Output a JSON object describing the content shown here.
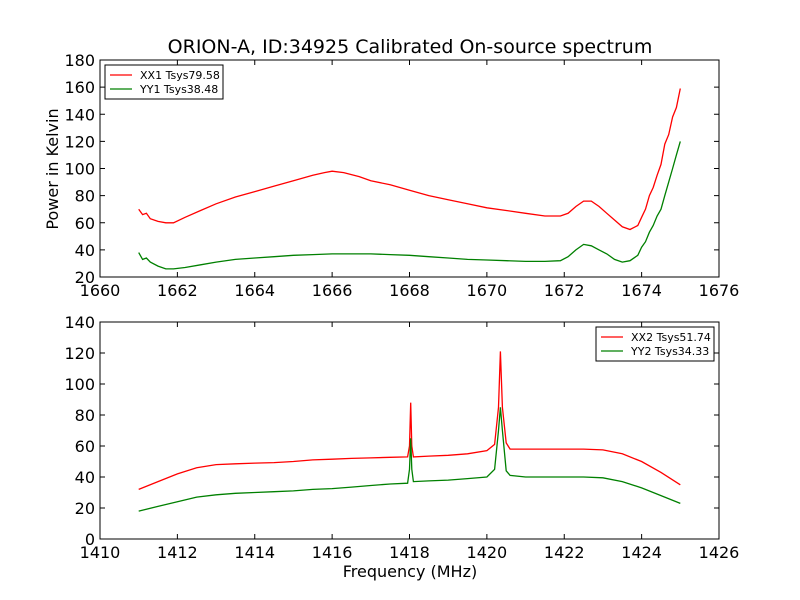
{
  "figure": {
    "title": "ORION-A, ID:34925 Calibrated On-source spectrum",
    "ylabel": "Power in Kelvin",
    "xlabel": "Frequency (MHz)"
  },
  "chart_data": [
    {
      "type": "line",
      "title": "ORION-A, ID:34925 Calibrated On-source spectrum",
      "xlabel": "",
      "ylabel": "Power in Kelvin",
      "xlim": [
        1660,
        1676
      ],
      "ylim": [
        20,
        180
      ],
      "xticks": [
        1660,
        1662,
        1664,
        1666,
        1668,
        1670,
        1672,
        1674,
        1676
      ],
      "yticks": [
        20,
        40,
        60,
        80,
        100,
        120,
        140,
        160,
        180
      ],
      "grid": false,
      "legend": "top-left",
      "series": [
        {
          "name": "XX1 Tsys79.58",
          "color": "#ff0000",
          "points": [
            [
              1661.0,
              70
            ],
            [
              1661.1,
              66
            ],
            [
              1661.2,
              67
            ],
            [
              1661.3,
              63
            ],
            [
              1661.5,
              61
            ],
            [
              1661.7,
              60
            ],
            [
              1661.9,
              60
            ],
            [
              1662.2,
              64
            ],
            [
              1662.6,
              69
            ],
            [
              1663.0,
              74
            ],
            [
              1663.5,
              79
            ],
            [
              1664.0,
              83
            ],
            [
              1664.5,
              87
            ],
            [
              1665.0,
              91
            ],
            [
              1665.5,
              95
            ],
            [
              1665.8,
              97
            ],
            [
              1666.0,
              98
            ],
            [
              1666.3,
              97
            ],
            [
              1666.7,
              94
            ],
            [
              1667.0,
              91
            ],
            [
              1667.5,
              88
            ],
            [
              1668.0,
              84
            ],
            [
              1668.5,
              80
            ],
            [
              1669.0,
              77
            ],
            [
              1669.5,
              74
            ],
            [
              1670.0,
              71
            ],
            [
              1670.5,
              69
            ],
            [
              1671.0,
              67
            ],
            [
              1671.5,
              65
            ],
            [
              1671.9,
              65
            ],
            [
              1672.1,
              67
            ],
            [
              1672.3,
              72
            ],
            [
              1672.5,
              76
            ],
            [
              1672.7,
              76
            ],
            [
              1672.9,
              72
            ],
            [
              1673.1,
              67
            ],
            [
              1673.3,
              62
            ],
            [
              1673.5,
              57
            ],
            [
              1673.7,
              55
            ],
            [
              1673.9,
              58
            ],
            [
              1674.0,
              64
            ],
            [
              1674.1,
              70
            ],
            [
              1674.2,
              80
            ],
            [
              1674.3,
              86
            ],
            [
              1674.4,
              95
            ],
            [
              1674.5,
              103
            ],
            [
              1674.6,
              118
            ],
            [
              1674.7,
              125
            ],
            [
              1674.8,
              138
            ],
            [
              1674.9,
              145
            ],
            [
              1675.0,
              159
            ]
          ]
        },
        {
          "name": "YY1 Tsys38.48",
          "color": "#008000",
          "points": [
            [
              1661.0,
              38
            ],
            [
              1661.1,
              33
            ],
            [
              1661.2,
              34
            ],
            [
              1661.3,
              31
            ],
            [
              1661.5,
              28
            ],
            [
              1661.7,
              26
            ],
            [
              1661.9,
              26
            ],
            [
              1662.2,
              27
            ],
            [
              1662.6,
              29
            ],
            [
              1663.0,
              31
            ],
            [
              1663.5,
              33
            ],
            [
              1664.0,
              34
            ],
            [
              1664.5,
              35
            ],
            [
              1665.0,
              36
            ],
            [
              1665.5,
              36.5
            ],
            [
              1666.0,
              37
            ],
            [
              1666.5,
              37
            ],
            [
              1667.0,
              37
            ],
            [
              1667.5,
              36.5
            ],
            [
              1668.0,
              36
            ],
            [
              1668.5,
              35
            ],
            [
              1669.0,
              34
            ],
            [
              1669.5,
              33
            ],
            [
              1670.0,
              32.5
            ],
            [
              1670.5,
              32
            ],
            [
              1671.0,
              31.5
            ],
            [
              1671.5,
              31.5
            ],
            [
              1671.9,
              32
            ],
            [
              1672.1,
              35
            ],
            [
              1672.3,
              40
            ],
            [
              1672.5,
              44
            ],
            [
              1672.7,
              43
            ],
            [
              1672.9,
              40
            ],
            [
              1673.1,
              37
            ],
            [
              1673.3,
              33
            ],
            [
              1673.5,
              31
            ],
            [
              1673.7,
              32
            ],
            [
              1673.9,
              36
            ],
            [
              1674.0,
              42
            ],
            [
              1674.1,
              46
            ],
            [
              1674.2,
              53
            ],
            [
              1674.3,
              58
            ],
            [
              1674.4,
              65
            ],
            [
              1674.5,
              70
            ],
            [
              1674.6,
              80
            ],
            [
              1674.7,
              90
            ],
            [
              1674.8,
              100
            ],
            [
              1674.9,
              110
            ],
            [
              1675.0,
              120
            ]
          ]
        }
      ]
    },
    {
      "type": "line",
      "title": "",
      "xlabel": "Frequency (MHz)",
      "ylabel": "",
      "xlim": [
        1410,
        1426
      ],
      "ylim": [
        0,
        140
      ],
      "xticks": [
        1410,
        1412,
        1414,
        1416,
        1418,
        1420,
        1422,
        1424,
        1426
      ],
      "yticks": [
        0,
        20,
        40,
        60,
        80,
        100,
        120,
        140
      ],
      "grid": false,
      "legend": "top-right",
      "series": [
        {
          "name": "XX2 Tsys51.74",
          "color": "#ff0000",
          "points": [
            [
              1411.0,
              32
            ],
            [
              1411.5,
              37
            ],
            [
              1412.0,
              42
            ],
            [
              1412.5,
              46
            ],
            [
              1413.0,
              48
            ],
            [
              1413.5,
              48.5
            ],
            [
              1414.0,
              49
            ],
            [
              1414.5,
              49.3
            ],
            [
              1415.0,
              50
            ],
            [
              1415.5,
              51
            ],
            [
              1416.0,
              51.5
            ],
            [
              1416.5,
              52
            ],
            [
              1417.0,
              52.3
            ],
            [
              1417.5,
              52.7
            ],
            [
              1417.95,
              53
            ],
            [
              1418.0,
              60
            ],
            [
              1418.03,
              88
            ],
            [
              1418.06,
              60
            ],
            [
              1418.1,
              53
            ],
            [
              1418.5,
              53.5
            ],
            [
              1419.0,
              54
            ],
            [
              1419.5,
              55
            ],
            [
              1420.0,
              57
            ],
            [
              1420.2,
              61
            ],
            [
              1420.3,
              85
            ],
            [
              1420.35,
              121
            ],
            [
              1420.4,
              85
            ],
            [
              1420.5,
              62
            ],
            [
              1420.6,
              58
            ],
            [
              1421.0,
              58
            ],
            [
              1421.5,
              58
            ],
            [
              1422.0,
              58
            ],
            [
              1422.5,
              58
            ],
            [
              1423.0,
              57.5
            ],
            [
              1423.5,
              55
            ],
            [
              1424.0,
              50
            ],
            [
              1424.5,
              43
            ],
            [
              1425.0,
              35
            ]
          ]
        },
        {
          "name": "YY2 Tsys34.33",
          "color": "#008000",
          "points": [
            [
              1411.0,
              18
            ],
            [
              1411.5,
              21
            ],
            [
              1412.0,
              24
            ],
            [
              1412.5,
              27
            ],
            [
              1413.0,
              28.5
            ],
            [
              1413.5,
              29.5
            ],
            [
              1414.0,
              30
            ],
            [
              1414.5,
              30.5
            ],
            [
              1415.0,
              31
            ],
            [
              1415.5,
              32
            ],
            [
              1416.0,
              32.5
            ],
            [
              1416.5,
              33.5
            ],
            [
              1417.0,
              34.5
            ],
            [
              1417.5,
              35.5
            ],
            [
              1417.95,
              36
            ],
            [
              1418.0,
              45
            ],
            [
              1418.03,
              65
            ],
            [
              1418.06,
              45
            ],
            [
              1418.1,
              37
            ],
            [
              1418.5,
              37.5
            ],
            [
              1419.0,
              38
            ],
            [
              1419.5,
              39
            ],
            [
              1420.0,
              40
            ],
            [
              1420.2,
              45
            ],
            [
              1420.3,
              70
            ],
            [
              1420.35,
              85
            ],
            [
              1420.4,
              70
            ],
            [
              1420.5,
              44
            ],
            [
              1420.6,
              41
            ],
            [
              1421.0,
              40
            ],
            [
              1421.5,
              40
            ],
            [
              1422.0,
              40
            ],
            [
              1422.5,
              40
            ],
            [
              1423.0,
              39.5
            ],
            [
              1423.5,
              37
            ],
            [
              1424.0,
              33
            ],
            [
              1424.5,
              28
            ],
            [
              1425.0,
              23
            ]
          ]
        }
      ]
    }
  ]
}
